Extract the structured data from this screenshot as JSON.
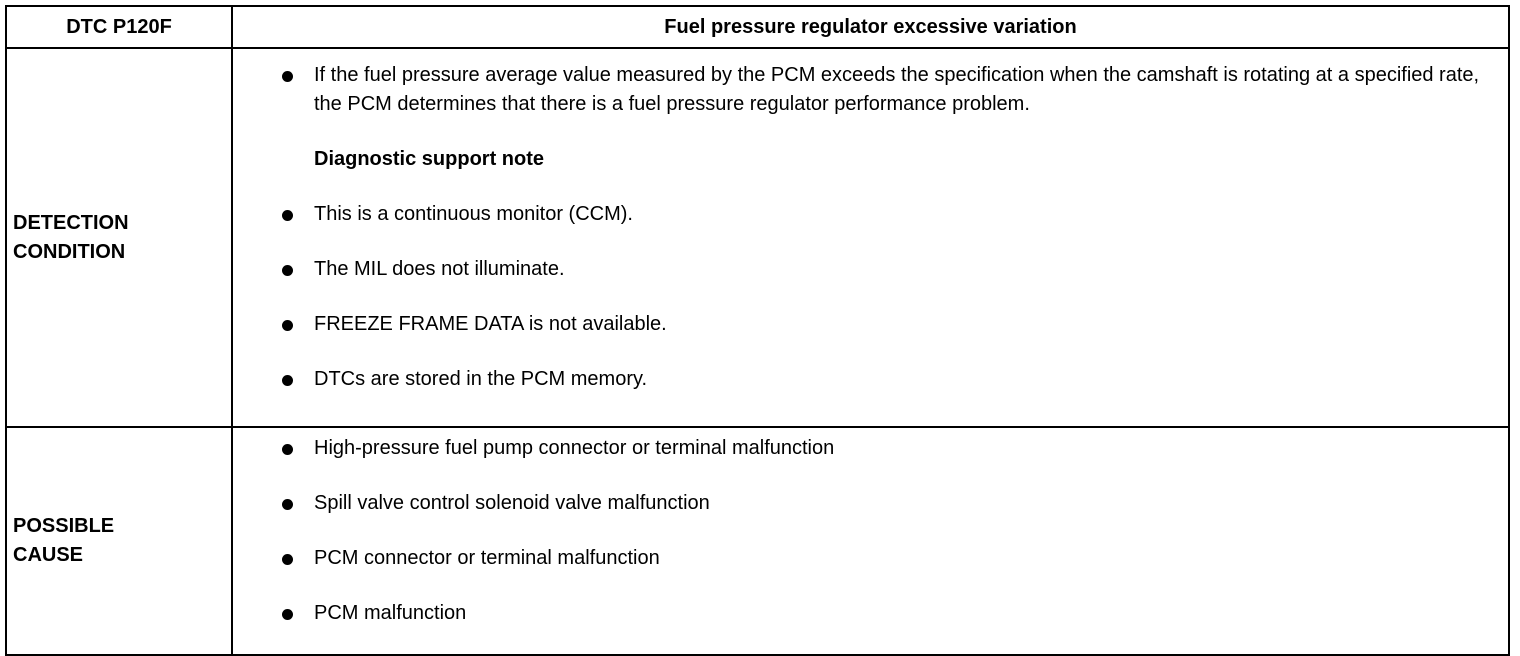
{
  "table": {
    "header": [
      "DTC P120F",
      "Fuel pressure regulator excessive variation"
    ],
    "rows": [
      {
        "label": "DETECTION CONDITION",
        "bullets": [
          "If the fuel pressure average value measured by the PCM exceeds the specification when the camshaft is rotating at a specified rate, the PCM determines that there is a fuel pressure regulator performance problem."
        ],
        "note": {
          "heading": "Diagnostic support note",
          "bullets": [
            "This is a continuous monitor (CCM).",
            "The MIL does not illuminate.",
            "FREEZE FRAME DATA is not available.",
            "DTCs are stored in the PCM memory."
          ]
        }
      },
      {
        "label": "POSSIBLE CAUSE",
        "bullets": [
          "High-pressure fuel pump connector or terminal malfunction",
          "Spill valve control solenoid valve malfunction",
          "PCM connector or terminal malfunction",
          "PCM malfunction"
        ]
      }
    ]
  }
}
